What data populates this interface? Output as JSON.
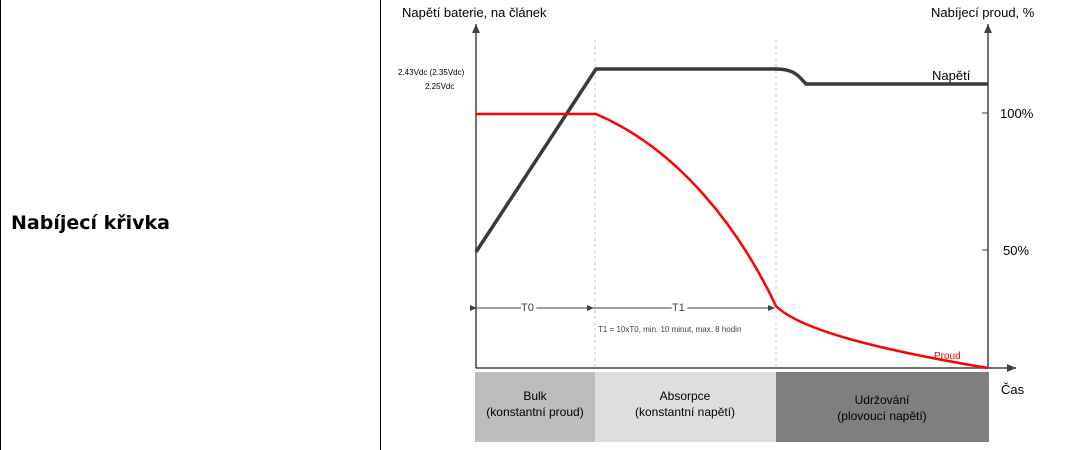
{
  "row_label": "Nabíjecí křivka",
  "diagram": {
    "left_axis_label": "Napětí baterie, na článek",
    "right_axis_label": "Nabíjecí proud, %",
    "x_axis_label": "Čas",
    "voltage_label_1": "2.43Vdc (2.35Vdc)",
    "voltage_label_2": "2.25Vdc",
    "pct_100": "100%",
    "pct_50": "50%",
    "voltage_curve_label": "Napětí",
    "current_curve_label": "Proud",
    "t0": "T0",
    "t1": "T1",
    "t1_note": "T1 = 10xT0, min. 10 minut, max. 8 hodin",
    "stages": [
      {
        "line1": "Bulk",
        "line2": "(konstantní proud)",
        "color": "#bdbdbd"
      },
      {
        "line1": "Absorpce",
        "line2": "(konstantní napětí)",
        "color": "#dedede"
      },
      {
        "line1": "Udržování",
        "line2": "(plovoucí napětí)",
        "color": "#7f7f7f"
      }
    ],
    "colors": {
      "voltage": "#3a3a3a",
      "current": "#ff0000",
      "axis": "#404040",
      "grid": "#c8c8c8"
    }
  }
}
